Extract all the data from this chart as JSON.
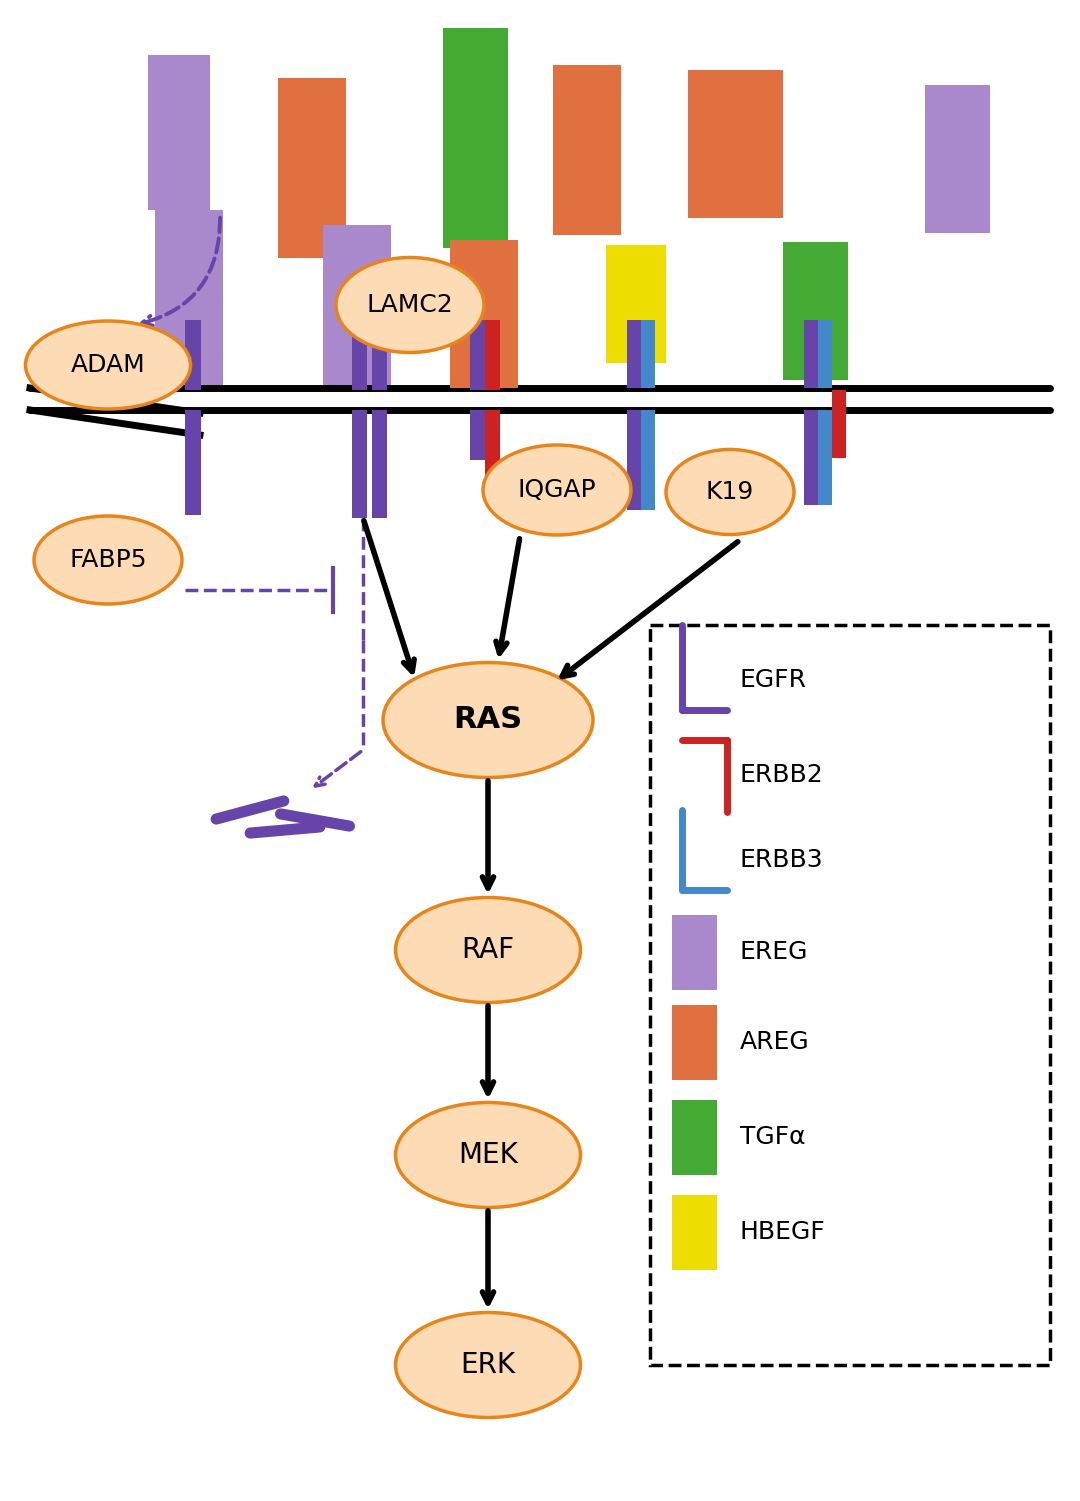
{
  "bg": "#ffffff",
  "of": "#FDDBB4",
  "oe": "#E8851A",
  "pu": "#6644AA",
  "re": "#CC2222",
  "bl": "#4488CC",
  "gr": "#44AA33",
  "ye": "#EEDD00",
  "sa": "#E07040",
  "lp": "#AA88CC",
  "leg_labels": [
    "EGFR",
    "ERBB2",
    "ERBB3",
    "EREG",
    "AREG",
    "TGFα",
    "HBEGF"
  ]
}
